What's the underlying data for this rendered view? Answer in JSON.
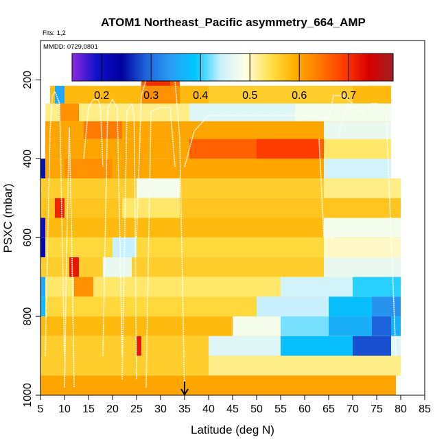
{
  "chart_data": {
    "type": "heatmap",
    "title": "ATOM1 Northeast_Pacific asymmetry_664_AMP",
    "subtitle_flights": "Flts: 1,2",
    "subtitle_dates": "MMDD: 0729,0801",
    "xlabel": "Latitude (deg N)",
    "ylabel": "PSXC (mbar)",
    "xlim": [
      5,
      85
    ],
    "ylim": [
      1000,
      100
    ],
    "x_ticks": [
      5,
      10,
      15,
      20,
      25,
      30,
      35,
      40,
      45,
      50,
      55,
      60,
      65,
      70,
      75,
      80,
      85
    ],
    "y_ticks": [
      200,
      400,
      600,
      800,
      1000
    ],
    "colorbar": {
      "range": [
        0.14,
        0.79
      ],
      "ticks": [
        0.2,
        0.3,
        0.4,
        0.5,
        0.6,
        0.7
      ],
      "colors": [
        "#8a2be2",
        "#1010c8",
        "#0000a0",
        "#1e64dc",
        "#2a9df4",
        "#00c8ff",
        "#c8f0ff",
        "#ffffe6",
        "#ffe24a",
        "#ffb000",
        "#ff7a00",
        "#ff3c00",
        "#d80000",
        "#a02020"
      ]
    },
    "layers": [
      {
        "p_top": 185,
        "p_bot": 215,
        "segments": [
          {
            "from": 26,
            "to": 34,
            "value": 0.66
          },
          {
            "from": 27,
            "to": 32,
            "value": 0.7
          }
        ]
      },
      {
        "p_top": 215,
        "p_bot": 260,
        "segments": [
          {
            "from": 7,
            "to": 78,
            "value": 0.58
          },
          {
            "from": 8,
            "to": 10,
            "value": 0.35
          },
          {
            "from": 26,
            "to": 34,
            "value": 0.62
          },
          {
            "from": 40,
            "to": 70,
            "value": 0.56
          }
        ]
      },
      {
        "p_top": 260,
        "p_bot": 305,
        "segments": [
          {
            "from": 6,
            "to": 78,
            "value": 0.52
          },
          {
            "from": 9,
            "to": 13,
            "value": 0.62
          },
          {
            "from": 36,
            "to": 58,
            "value": 0.46
          },
          {
            "from": 58,
            "to": 78,
            "value": 0.48
          }
        ]
      },
      {
        "p_top": 305,
        "p_bot": 350,
        "segments": [
          {
            "from": 6,
            "to": 78,
            "value": 0.6
          },
          {
            "from": 14,
            "to": 22,
            "value": 0.64
          },
          {
            "from": 64,
            "to": 78,
            "value": 0.47
          }
        ]
      },
      {
        "p_top": 350,
        "p_bot": 400,
        "segments": [
          {
            "from": 6,
            "to": 64,
            "value": 0.6
          },
          {
            "from": 36,
            "to": 64,
            "value": 0.66
          },
          {
            "from": 50,
            "to": 63,
            "value": 0.69
          },
          {
            "from": 64,
            "to": 78,
            "value": 0.53
          }
        ]
      },
      {
        "p_top": 400,
        "p_bot": 450,
        "segments": [
          {
            "from": 5,
            "to": 78,
            "value": 0.6
          },
          {
            "from": 5,
            "to": 6,
            "value": 0.25
          },
          {
            "from": 10,
            "to": 20,
            "value": 0.62
          },
          {
            "from": 64,
            "to": 78,
            "value": 0.45
          }
        ]
      },
      {
        "p_top": 450,
        "p_bot": 500,
        "segments": [
          {
            "from": 5,
            "to": 80,
            "value": 0.56
          },
          {
            "from": 25,
            "to": 34,
            "value": 0.48
          },
          {
            "from": 64,
            "to": 80,
            "value": 0.52
          }
        ]
      },
      {
        "p_top": 500,
        "p_bot": 550,
        "segments": [
          {
            "from": 5,
            "to": 80,
            "value": 0.57
          },
          {
            "from": 8,
            "to": 10,
            "value": 0.71
          },
          {
            "from": 22,
            "to": 34,
            "value": 0.53
          }
        ]
      },
      {
        "p_top": 550,
        "p_bot": 600,
        "segments": [
          {
            "from": 5,
            "to": 80,
            "value": 0.58
          },
          {
            "from": 5,
            "to": 6,
            "value": 0.2
          },
          {
            "from": 64,
            "to": 80,
            "value": 0.48
          }
        ]
      },
      {
        "p_top": 600,
        "p_bot": 650,
        "segments": [
          {
            "from": 5,
            "to": 80,
            "value": 0.55
          },
          {
            "from": 5,
            "to": 6,
            "value": 0.22
          },
          {
            "from": 20,
            "to": 25,
            "value": 0.44
          },
          {
            "from": 64,
            "to": 80,
            "value": 0.5
          }
        ]
      },
      {
        "p_top": 650,
        "p_bot": 700,
        "segments": [
          {
            "from": 5,
            "to": 80,
            "value": 0.56
          },
          {
            "from": 11,
            "to": 13,
            "value": 0.72
          },
          {
            "from": 18,
            "to": 24,
            "value": 0.47
          },
          {
            "from": 64,
            "to": 80,
            "value": 0.47
          }
        ]
      },
      {
        "p_top": 700,
        "p_bot": 750,
        "segments": [
          {
            "from": 5,
            "to": 80,
            "value": 0.53
          },
          {
            "from": 5,
            "to": 6,
            "value": 0.35
          },
          {
            "from": 12,
            "to": 16,
            "value": 0.62
          },
          {
            "from": 55,
            "to": 80,
            "value": 0.45
          },
          {
            "from": 70,
            "to": 80,
            "value": 0.4
          }
        ]
      },
      {
        "p_top": 750,
        "p_bot": 800,
        "segments": [
          {
            "from": 5,
            "to": 80,
            "value": 0.55
          },
          {
            "from": 5,
            "to": 6,
            "value": 0.37
          },
          {
            "from": 50,
            "to": 80,
            "value": 0.44
          },
          {
            "from": 65,
            "to": 80,
            "value": 0.38
          },
          {
            "from": 74,
            "to": 80,
            "value": 0.33
          }
        ]
      },
      {
        "p_top": 800,
        "p_bot": 850,
        "segments": [
          {
            "from": 5,
            "to": 80,
            "value": 0.58
          },
          {
            "from": 45,
            "to": 80,
            "value": 0.48
          },
          {
            "from": 55,
            "to": 80,
            "value": 0.42
          },
          {
            "from": 65,
            "to": 80,
            "value": 0.36
          },
          {
            "from": 74,
            "to": 78,
            "value": 0.29
          }
        ]
      },
      {
        "p_top": 850,
        "p_bot": 900,
        "segments": [
          {
            "from": 5,
            "to": 80,
            "value": 0.56
          },
          {
            "from": 25,
            "to": 26,
            "value": 0.72
          },
          {
            "from": 40,
            "to": 80,
            "value": 0.46
          },
          {
            "from": 55,
            "to": 78,
            "value": 0.38
          },
          {
            "from": 70,
            "to": 78,
            "value": 0.28
          }
        ]
      },
      {
        "p_top": 900,
        "p_bot": 950,
        "segments": [
          {
            "from": 5,
            "to": 80,
            "value": 0.56
          },
          {
            "from": 40,
            "to": 80,
            "value": 0.52
          }
        ]
      },
      {
        "p_top": 950,
        "p_bot": 1000,
        "segments": [
          {
            "from": 5,
            "to": 79,
            "value": 0.6
          }
        ]
      }
    ],
    "cloud_boundary_lines": [
      {
        "x": [
          6,
          7,
          7.5,
          8,
          9,
          10
        ],
        "y": [
          900,
          330,
          240,
          230,
          260,
          900
        ]
      },
      {
        "x": [
          10,
          10.5,
          11,
          11.5,
          12
        ],
        "y": [
          980,
          600,
          320,
          600,
          980
        ]
      },
      {
        "x": [
          14,
          15,
          16,
          17,
          17.5,
          18
        ],
        "y": [
          400,
          270,
          250,
          250,
          270,
          420
        ]
      },
      {
        "x": [
          18,
          19,
          20,
          21,
          22
        ],
        "y": [
          900,
          270,
          250,
          270,
          900
        ]
      },
      {
        "x": [
          22,
          23,
          24,
          24.5,
          25
        ],
        "y": [
          960,
          280,
          260,
          290,
          960
        ]
      },
      {
        "x": [
          25,
          26,
          27,
          30,
          33,
          34,
          35
        ],
        "y": [
          600,
          240,
          200,
          200,
          200,
          350,
          1000
        ]
      },
      {
        "x": [
          27,
          28,
          30,
          32,
          33
        ],
        "y": [
          980,
          280,
          270,
          270,
          420
        ]
      },
      {
        "x": [
          35,
          37,
          40,
          50,
          60,
          65,
          66,
          68,
          70
        ],
        "y": [
          420,
          330,
          290,
          290,
          290,
          300,
          240,
          240,
          260
        ]
      },
      {
        "x": [
          63,
          64,
          66
        ],
        "y": [
          350,
          600,
          600
        ]
      },
      {
        "x": [
          67,
          69,
          70,
          72,
          74,
          75,
          77,
          78,
          79
        ],
        "y": [
          340,
          260,
          270,
          280,
          260,
          260,
          290,
          600,
          900
        ]
      }
    ],
    "marker": {
      "latitude": 35,
      "type": "arrow-down"
    }
  }
}
